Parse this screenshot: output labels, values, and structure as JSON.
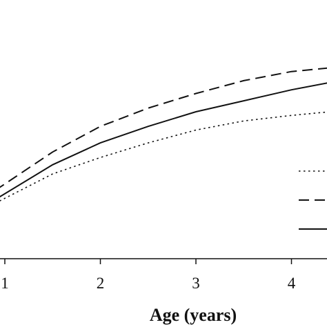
{
  "chart_data": {
    "type": "line",
    "title": "",
    "xlabel": "Age (years)",
    "ylabel": "",
    "xlim": [
      0.95,
      4.4
    ],
    "ylim": [
      0,
      1
    ],
    "xticks": [
      "1",
      "2",
      "3",
      "4"
    ],
    "x": [
      0.9,
      1.5,
      2.0,
      2.5,
      3.0,
      3.5,
      4.0,
      4.4
    ],
    "series": [
      {
        "style": "dotted",
        "values": [
          0.3,
          0.46,
          0.55,
          0.63,
          0.7,
          0.75,
          0.78,
          0.8
        ]
      },
      {
        "style": "dashed",
        "values": [
          0.37,
          0.58,
          0.72,
          0.82,
          0.9,
          0.97,
          1.02,
          1.04
        ]
      },
      {
        "style": "solid",
        "values": [
          0.32,
          0.51,
          0.63,
          0.72,
          0.8,
          0.86,
          0.92,
          0.96
        ]
      }
    ],
    "grid": false,
    "legend_position": "right"
  }
}
